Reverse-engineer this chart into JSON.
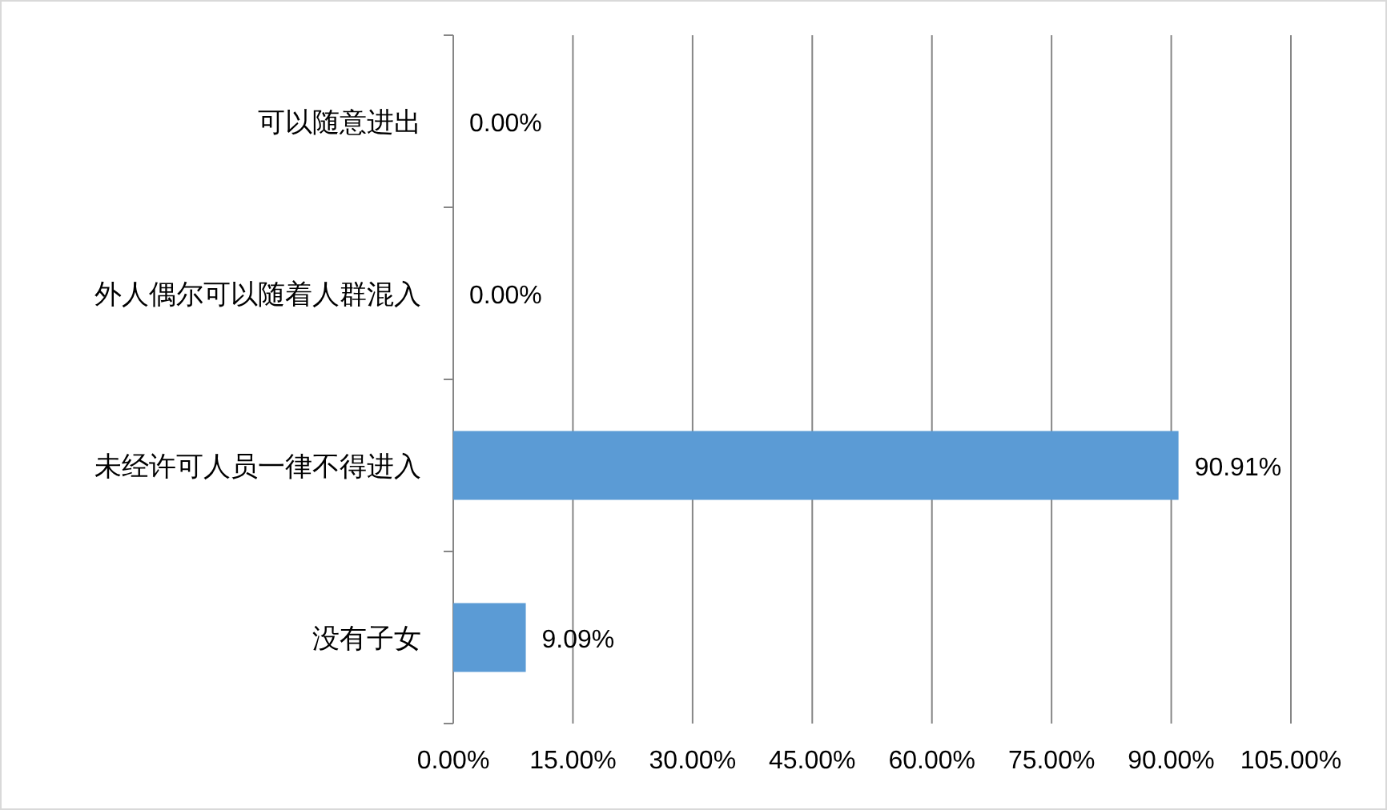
{
  "chart_data": {
    "type": "bar",
    "orientation": "horizontal",
    "categories": [
      "可以随意进出",
      "外人偶尔可以随着人群混入",
      "未经许可人员一律不得进入",
      "没有子女"
    ],
    "values": [
      0,
      0,
      90.91,
      9.09
    ],
    "value_labels": [
      "0.00%",
      "0.00%",
      "90.91%",
      "9.09%"
    ],
    "color": "#5b9bd5",
    "xlim": [
      0,
      105
    ],
    "xticks": [
      {
        "value": 0,
        "label": "0.00%"
      },
      {
        "value": 15,
        "label": "15.00%"
      },
      {
        "value": 30,
        "label": "30.00%"
      },
      {
        "value": 45,
        "label": "45.00%"
      },
      {
        "value": 60,
        "label": "60.00%"
      },
      {
        "value": 75,
        "label": "75.00%"
      },
      {
        "value": 90,
        "label": "90.00%"
      },
      {
        "value": 105,
        "label": "105.00%"
      }
    ],
    "grid": "x"
  }
}
